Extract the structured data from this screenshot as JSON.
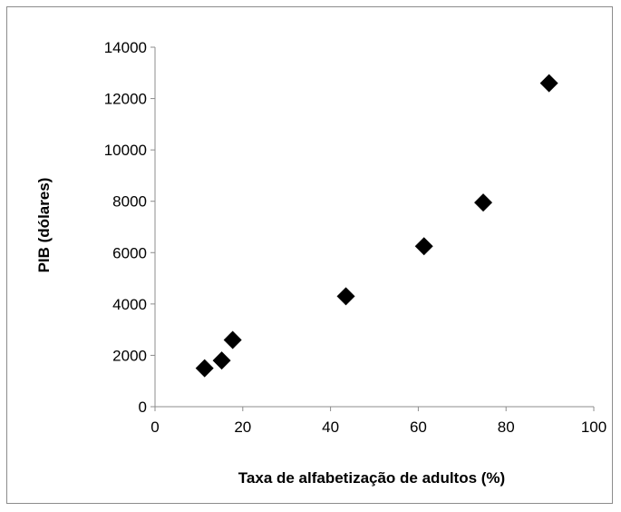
{
  "chart_data": {
    "type": "scatter",
    "title": "",
    "xlabel": "Taxa de alfabetização de adultos (%)",
    "ylabel": "PIB (dólares)",
    "xlim": [
      0,
      100
    ],
    "ylim": [
      0,
      14000
    ],
    "x_ticks": [
      "0",
      "20",
      "40",
      "60",
      "80",
      "100"
    ],
    "y_ticks": [
      "0",
      "2000",
      "4000",
      "6000",
      "8000",
      "10000",
      "12000",
      "14000"
    ],
    "grid": false,
    "legend": "none",
    "marker": "diamond",
    "marker_color": "#000000",
    "series": [
      {
        "points": [
          {
            "x": 11.3,
            "y": 1500
          },
          {
            "x": 15.2,
            "y": 1800
          },
          {
            "x": 17.7,
            "y": 2600
          },
          {
            "x": 43.5,
            "y": 4300
          },
          {
            "x": 61.3,
            "y": 6250
          },
          {
            "x": 74.8,
            "y": 7950
          },
          {
            "x": 89.8,
            "y": 12600
          }
        ]
      }
    ]
  }
}
